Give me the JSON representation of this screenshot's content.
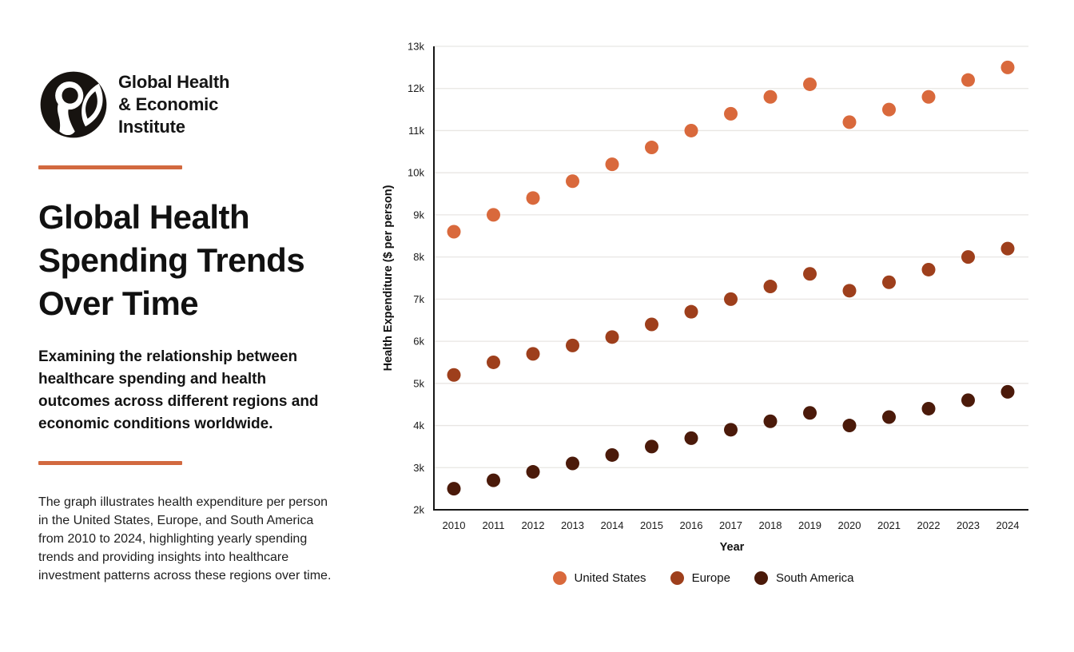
{
  "brand": {
    "name": "Global Health\n& Economic\nInstitute",
    "logo_icon": "person-leaf-circle-mark"
  },
  "accent_color": "#D2693F",
  "title": "Global Health\nSpending Trends\nOver Time",
  "subtitle": "Examining the relationship between\nhealthcare spending and health\noutcomes across different regions and\neconomic conditions worldwide.",
  "description": "The graph illustrates health expenditure per person\nin the United States, Europe, and South America\nfrom 2010 to 2024, highlighting yearly spending\ntrends and providing insights into healthcare\ninvestment patterns across these regions over time.",
  "chart_data": {
    "type": "scatter",
    "title": "",
    "xlabel": "Year",
    "ylabel": "Health Expenditure ($ per person)",
    "x": [
      2010,
      2011,
      2012,
      2013,
      2014,
      2015,
      2016,
      2017,
      2018,
      2019,
      2020,
      2021,
      2022,
      2023,
      2024
    ],
    "series": [
      {
        "name": "United States",
        "color": "#D9693C",
        "values": [
          8600,
          9000,
          9400,
          9800,
          10200,
          10600,
          11000,
          11400,
          11800,
          12100,
          11200,
          11500,
          11800,
          12200,
          12500
        ]
      },
      {
        "name": "Europe",
        "color": "#9E3F1C",
        "values": [
          5200,
          5500,
          5700,
          5900,
          6100,
          6400,
          6700,
          7000,
          7300,
          7600,
          7200,
          7400,
          7700,
          8000,
          8200
        ]
      },
      {
        "name": "South America",
        "color": "#4B1A0A",
        "values": [
          2500,
          2700,
          2900,
          3100,
          3300,
          3500,
          3700,
          3900,
          4100,
          4300,
          4000,
          4200,
          4400,
          4600,
          4800
        ]
      }
    ],
    "ylim": [
      2000,
      13000
    ],
    "ytick_step": 1000,
    "ytick_labels": [
      "2k",
      "3k",
      "4k",
      "5k",
      "6k",
      "7k",
      "8k",
      "9k",
      "10k",
      "11k",
      "12k",
      "13k"
    ],
    "grid": true,
    "grid_color": "#e8e6e3",
    "axis_color": "#161616",
    "legend_position": "bottom",
    "marker_radius": 8.5
  }
}
